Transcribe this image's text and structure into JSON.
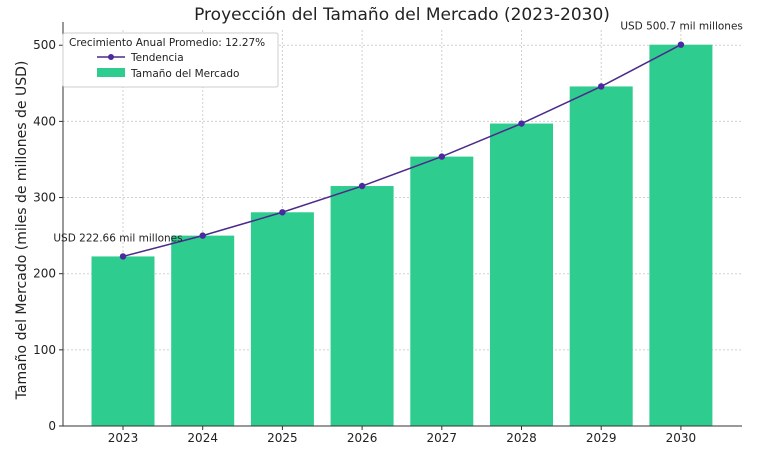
{
  "chart_data": {
    "type": "bar",
    "title": "Proyección del Tamaño del Mercado (2023-2030)",
    "ylabel": "Tamaño del Mercado (miles de millones de USD)",
    "xlabel": "",
    "categories": [
      "2023",
      "2024",
      "2025",
      "2026",
      "2027",
      "2028",
      "2029",
      "2030"
    ],
    "series": [
      {
        "name": "Tamaño del Mercado",
        "type": "bar",
        "color": "#2ecc8f",
        "values": [
          222.66,
          249.98,
          280.65,
          315.09,
          353.75,
          397.16,
          445.88,
          500.7
        ]
      },
      {
        "name": "Tendencia",
        "type": "line",
        "color": "#4b2a8c",
        "marker_color": "#4b2aa0",
        "values": [
          222.66,
          249.98,
          280.65,
          315.09,
          353.75,
          397.16,
          445.88,
          500.7
        ]
      }
    ],
    "ylim": [
      0,
      520
    ],
    "yticks": [
      0,
      100,
      200,
      300,
      400,
      500
    ],
    "grid": true,
    "legend": {
      "title": "Crecimiento Anual Promedio: 12.27%",
      "placement": "top-left"
    },
    "annotations": [
      {
        "text": "USD 222.66 mil millones",
        "category": "2023",
        "value": 222.66
      },
      {
        "text": "USD 500.7 mil millones",
        "category": "2030",
        "value": 500.7
      }
    ]
  }
}
